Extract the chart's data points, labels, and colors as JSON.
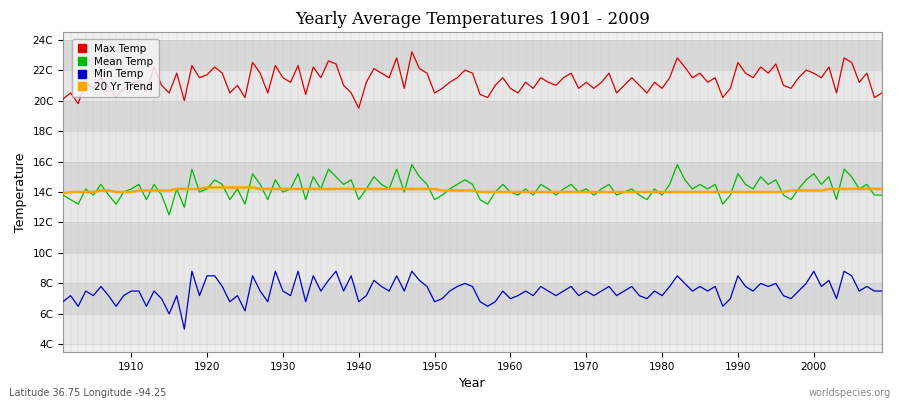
{
  "title": "Yearly Average Temperatures 1901 - 2009",
  "xlabel": "Year",
  "ylabel": "Temperature",
  "subtitle_left": "Latitude 36.75 Longitude -94.25",
  "subtitle_right": "worldspecies.org",
  "years_start": 1901,
  "years_end": 2009,
  "yticks": [
    4,
    6,
    8,
    10,
    12,
    14,
    16,
    18,
    20,
    22,
    24
  ],
  "ytick_labels": [
    "4C",
    "6C",
    "8C",
    "10C",
    "12C",
    "14C",
    "16C",
    "18C",
    "20C",
    "22C",
    "24C"
  ],
  "ylim": [
    3.5,
    24.5
  ],
  "xticks": [
    1910,
    1920,
    1930,
    1940,
    1950,
    1960,
    1970,
    1980,
    1990,
    2000
  ],
  "xlim": [
    1901,
    2009
  ],
  "max_temp_color": "#dd0000",
  "mean_temp_color": "#00bb00",
  "min_temp_color": "#0000cc",
  "trend_color": "#ffa500",
  "bg_color": "#ffffff",
  "plot_bg_color": "#f0f0f0",
  "grid_color": "#dddddd",
  "band_color_light": "#e8e8e8",
  "band_color_dark": "#d8d8d8",
  "legend_labels": [
    "Max Temp",
    "Mean Temp",
    "Min Temp",
    "20 Yr Trend"
  ],
  "max_temps": [
    20.1,
    20.5,
    19.8,
    21.2,
    20.8,
    21.5,
    20.9,
    20.2,
    20.8,
    21.1,
    21.3,
    20.6,
    22.2,
    21.0,
    20.5,
    21.8,
    20.0,
    22.3,
    21.5,
    21.7,
    22.2,
    21.8,
    20.5,
    21.0,
    20.2,
    22.5,
    21.8,
    20.5,
    22.3,
    21.5,
    21.2,
    22.3,
    20.4,
    22.2,
    21.5,
    22.6,
    22.4,
    21.0,
    20.5,
    19.5,
    21.2,
    22.1,
    21.8,
    21.5,
    22.8,
    20.8,
    23.2,
    22.1,
    21.8,
    20.5,
    20.8,
    21.2,
    21.5,
    22.0,
    21.8,
    20.4,
    20.2,
    21.0,
    21.5,
    20.8,
    20.5,
    21.2,
    20.8,
    21.5,
    21.2,
    21.0,
    21.5,
    21.8,
    20.8,
    21.2,
    20.8,
    21.2,
    21.8,
    20.5,
    21.0,
    21.5,
    21.0,
    20.5,
    21.2,
    20.8,
    21.5,
    22.8,
    22.2,
    21.5,
    21.8,
    21.2,
    21.5,
    20.2,
    20.8,
    22.5,
    21.8,
    21.5,
    22.2,
    21.8,
    22.4,
    21.0,
    20.8,
    21.5,
    22.0,
    21.8,
    21.5,
    22.2,
    20.5,
    22.8,
    22.5,
    21.2,
    21.8,
    20.2,
    20.5
  ],
  "mean_temps": [
    13.8,
    13.5,
    13.2,
    14.2,
    13.8,
    14.5,
    13.8,
    13.2,
    14.0,
    14.2,
    14.5,
    13.5,
    14.5,
    13.8,
    12.5,
    14.2,
    13.0,
    15.5,
    14.0,
    14.2,
    14.8,
    14.5,
    13.5,
    14.2,
    13.2,
    15.2,
    14.5,
    13.5,
    14.8,
    14.0,
    14.2,
    15.2,
    13.5,
    15.0,
    14.2,
    15.5,
    15.0,
    14.5,
    14.8,
    13.5,
    14.2,
    15.0,
    14.5,
    14.2,
    15.5,
    14.0,
    15.8,
    15.0,
    14.5,
    13.5,
    13.8,
    14.2,
    14.5,
    14.8,
    14.5,
    13.5,
    13.2,
    14.0,
    14.5,
    14.0,
    13.8,
    14.2,
    13.8,
    14.5,
    14.2,
    13.8,
    14.2,
    14.5,
    14.0,
    14.2,
    13.8,
    14.2,
    14.5,
    13.8,
    14.0,
    14.2,
    13.8,
    13.5,
    14.2,
    13.8,
    14.5,
    15.8,
    14.8,
    14.2,
    14.5,
    14.2,
    14.5,
    13.2,
    13.8,
    15.2,
    14.5,
    14.2,
    15.0,
    14.5,
    14.8,
    13.8,
    13.5,
    14.2,
    14.8,
    15.2,
    14.5,
    15.0,
    13.5,
    15.5,
    15.0,
    14.2,
    14.5,
    13.8,
    13.8
  ],
  "min_temps": [
    6.8,
    7.2,
    6.5,
    7.5,
    7.2,
    7.8,
    7.2,
    6.5,
    7.2,
    7.5,
    7.5,
    6.5,
    7.5,
    7.0,
    6.0,
    7.2,
    5.0,
    8.8,
    7.2,
    8.5,
    8.5,
    7.8,
    6.8,
    7.2,
    6.2,
    8.5,
    7.5,
    6.8,
    8.8,
    7.5,
    7.2,
    8.8,
    6.8,
    8.5,
    7.5,
    8.2,
    8.8,
    7.5,
    8.5,
    6.8,
    7.2,
    8.2,
    7.8,
    7.5,
    8.5,
    7.5,
    8.8,
    8.2,
    7.8,
    6.8,
    7.0,
    7.5,
    7.8,
    8.0,
    7.8,
    6.8,
    6.5,
    6.8,
    7.5,
    7.0,
    7.2,
    7.5,
    7.2,
    7.8,
    7.5,
    7.2,
    7.5,
    7.8,
    7.2,
    7.5,
    7.2,
    7.5,
    7.8,
    7.2,
    7.5,
    7.8,
    7.2,
    7.0,
    7.5,
    7.2,
    7.8,
    8.5,
    8.0,
    7.5,
    7.8,
    7.5,
    7.8,
    6.5,
    7.0,
    8.5,
    7.8,
    7.5,
    8.0,
    7.8,
    8.0,
    7.2,
    7.0,
    7.5,
    8.0,
    8.8,
    7.8,
    8.2,
    7.0,
    8.8,
    8.5,
    7.5,
    7.8,
    7.5,
    7.5
  ],
  "trend_temps": [
    13.9,
    14.0,
    14.0,
    14.0,
    14.0,
    14.1,
    14.1,
    14.0,
    14.0,
    14.0,
    14.1,
    14.1,
    14.1,
    14.1,
    14.1,
    14.2,
    14.2,
    14.2,
    14.2,
    14.3,
    14.3,
    14.3,
    14.3,
    14.3,
    14.3,
    14.3,
    14.2,
    14.2,
    14.2,
    14.2,
    14.2,
    14.2,
    14.2,
    14.2,
    14.2,
    14.2,
    14.2,
    14.2,
    14.2,
    14.2,
    14.2,
    14.2,
    14.2,
    14.2,
    14.2,
    14.2,
    14.2,
    14.2,
    14.2,
    14.2,
    14.1,
    14.1,
    14.1,
    14.1,
    14.1,
    14.0,
    14.0,
    14.0,
    14.0,
    14.0,
    14.0,
    14.0,
    14.0,
    14.0,
    14.0,
    14.0,
    14.0,
    14.0,
    14.0,
    14.0,
    14.0,
    14.0,
    14.0,
    14.0,
    14.0,
    14.0,
    14.0,
    14.0,
    14.0,
    14.0,
    14.0,
    14.0,
    14.0,
    14.0,
    14.0,
    14.0,
    14.0,
    14.0,
    14.0,
    14.0,
    14.0,
    14.0,
    14.0,
    14.0,
    14.0,
    14.0,
    14.1,
    14.1,
    14.1,
    14.1,
    14.1,
    14.2,
    14.2,
    14.2,
    14.2,
    14.2,
    14.2,
    14.2,
    14.2
  ]
}
